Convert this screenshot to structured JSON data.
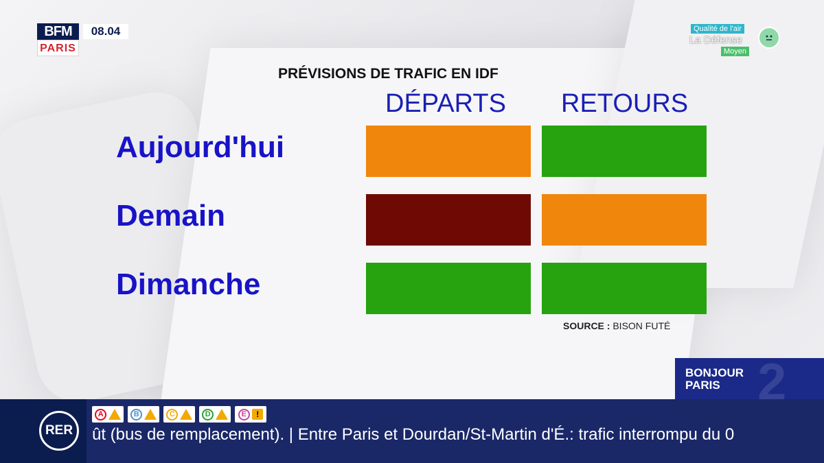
{
  "branding": {
    "logo_top": "BFM",
    "logo_bottom": "PARIS",
    "time": "08.04"
  },
  "air_quality": {
    "title": "Qualité de l'air",
    "location": "La Défense",
    "level": "Moyen",
    "face_icon": "neutral-face-icon"
  },
  "forecast": {
    "title": "PRÉVISIONS DE TRAFIC EN IDF",
    "columns": [
      "DÉPARTS",
      "RETOURS"
    ],
    "rows": [
      {
        "label": "Aujourd'hui",
        "departs": "orange",
        "retours": "vert"
      },
      {
        "label": "Demain",
        "departs": "rouge",
        "retours": "orange"
      },
      {
        "label": "Dimanche",
        "departs": "vert",
        "retours": "vert"
      }
    ],
    "colors": {
      "vert": "#26a30f",
      "orange": "#f0860c",
      "rouge": "#6e0a03"
    },
    "source_label": "SOURCE :",
    "source_value": "BISON FUTÉ"
  },
  "show": {
    "line1": "BONJOUR",
    "line2": "PARIS",
    "watermark": "2"
  },
  "ticker": {
    "network": "RER",
    "lines": [
      {
        "letter": "A",
        "color": "#e3051c",
        "status": "warning-icon"
      },
      {
        "letter": "B",
        "color": "#5291ce",
        "status": "warning-icon"
      },
      {
        "letter": "C",
        "color": "#f2a900",
        "status": "warning-icon"
      },
      {
        "letter": "D",
        "color": "#2aa12e",
        "status": "warning-icon"
      },
      {
        "letter": "E",
        "color": "#c9439b",
        "status": "alert-icon"
      }
    ],
    "alert_symbol": "!",
    "text": "ût (bus de remplacement). | Entre Paris et Dourdan/St-Martin d'É.: trafic interrompu du 0"
  }
}
